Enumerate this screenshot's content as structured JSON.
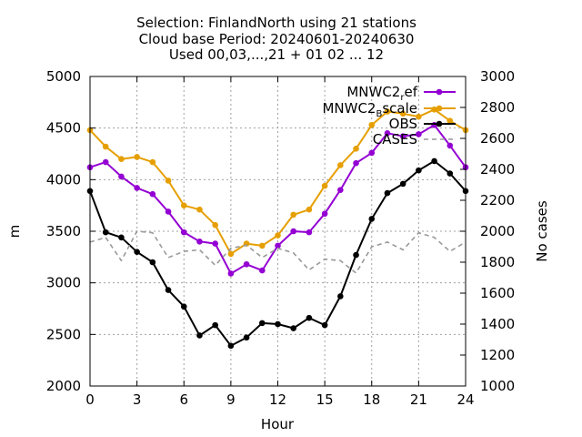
{
  "chart_data": {
    "type": "line",
    "title_lines": [
      "Selection: FinlandNorth using    21 stations",
      "Cloud base   Period: 20240601-20240630",
      "Used 00,03,...,21 + 01 02 ... 12"
    ],
    "xlabel": "Hour",
    "ylabel": "m",
    "y2label": "No cases",
    "xlim": [
      0,
      24
    ],
    "ylim": [
      2000,
      5000
    ],
    "y2lim": [
      1000,
      3000
    ],
    "xticks": [
      0,
      3,
      6,
      9,
      12,
      15,
      18,
      21,
      24
    ],
    "yticks": [
      2000,
      2500,
      3000,
      3500,
      4000,
      4500,
      5000
    ],
    "y2ticks": [
      1000,
      1200,
      1400,
      1600,
      1800,
      2000,
      2200,
      2400,
      2600,
      2800,
      3000
    ],
    "grid": true,
    "legend_position": "top-right",
    "x": [
      0,
      1,
      2,
      3,
      4,
      5,
      6,
      7,
      8,
      9,
      10,
      11,
      12,
      13,
      14,
      15,
      16,
      17,
      18,
      19,
      20,
      21,
      22,
      23,
      24
    ],
    "series": [
      {
        "name": "MNWC2_ref",
        "legend_main": "MNWC2",
        "legend_sub": "r",
        "legend_rest": "ef",
        "color": "#9400d3",
        "axis": "y1",
        "values": [
          4120,
          4170,
          4030,
          3920,
          3860,
          3690,
          3490,
          3400,
          3380,
          3090,
          3180,
          3120,
          3360,
          3500,
          3490,
          3670,
          3900,
          4160,
          4260,
          4450,
          4420,
          4440,
          4530,
          4330,
          4120
        ]
      },
      {
        "name": "MNWC2_Bscale",
        "legend_main": "MNWC2",
        "legend_sub": "B",
        "legend_rest": "scale",
        "color": "#e69f00",
        "axis": "y1",
        "values": [
          4480,
          4320,
          4200,
          4220,
          4170,
          3990,
          3750,
          3710,
          3560,
          3280,
          3380,
          3360,
          3460,
          3660,
          3710,
          3940,
          4140,
          4300,
          4530,
          4660,
          4640,
          4610,
          4680,
          4570,
          4480
        ]
      },
      {
        "name": "OBS",
        "legend_main": "OBS",
        "legend_sub": "",
        "legend_rest": "",
        "color": "#000000",
        "axis": "y1",
        "values": [
          3890,
          3490,
          3440,
          3300,
          3200,
          2930,
          2770,
          2490,
          2590,
          2390,
          2470,
          2610,
          2600,
          2560,
          2660,
          2590,
          2870,
          3270,
          3620,
          3870,
          3960,
          4090,
          4180,
          4060,
          3890
        ]
      },
      {
        "name": "CASES",
        "legend_main": "CASES",
        "legend_sub": "",
        "legend_rest": "",
        "color": "#999999",
        "axis": "y2",
        "style": "dashed",
        "values": [
          1930,
          1960,
          1810,
          2000,
          1990,
          1830,
          1870,
          1880,
          1780,
          1890,
          1910,
          1830,
          1890,
          1860,
          1750,
          1820,
          1810,
          1730,
          1900,
          1930,
          1880,
          1990,
          1960,
          1870,
          1930
        ]
      }
    ]
  }
}
